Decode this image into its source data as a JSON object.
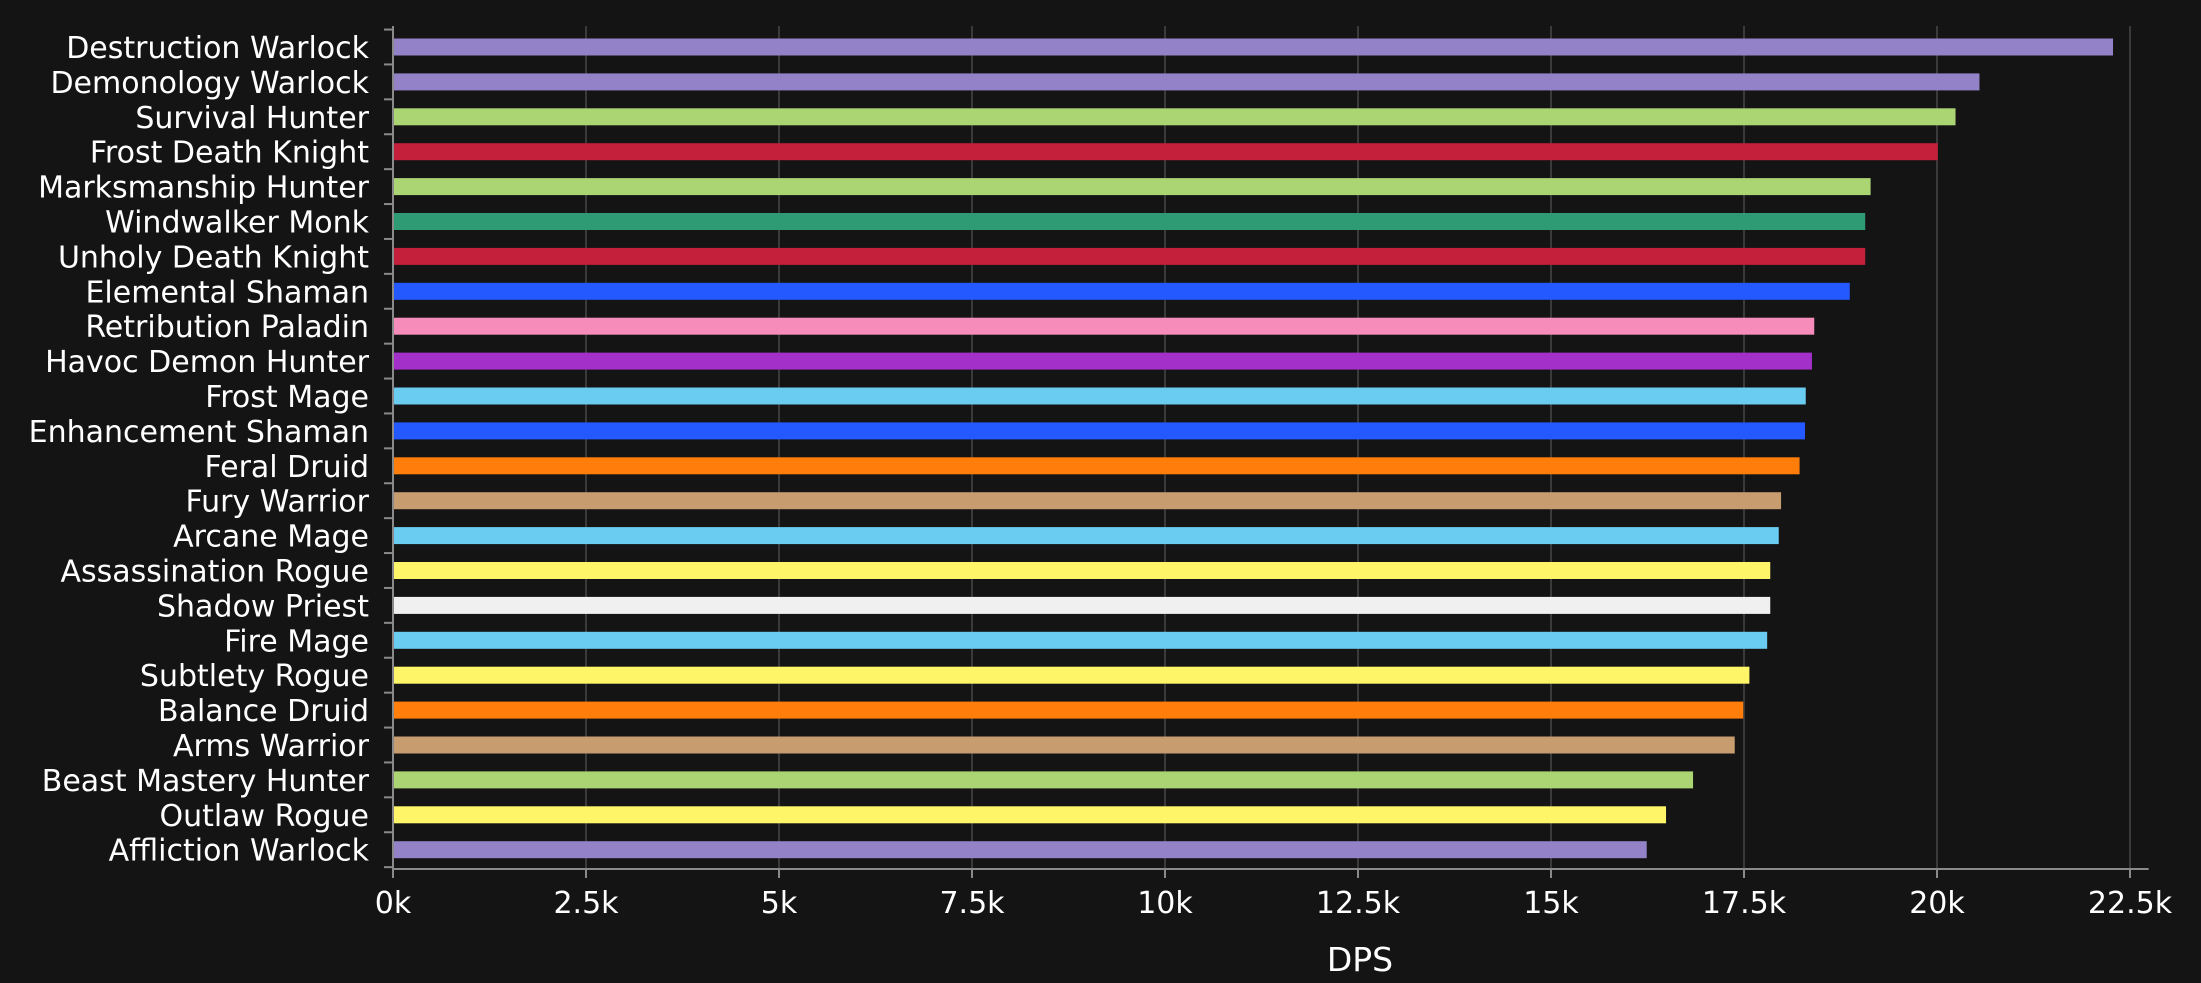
{
  "chart_data": {
    "type": "bar",
    "orientation": "horizontal",
    "xlabel": "DPS",
    "xlim": [
      0,
      23000
    ],
    "xticks": [
      {
        "value": 0,
        "label": "0k"
      },
      {
        "value": 2500,
        "label": "2.5k"
      },
      {
        "value": 5000,
        "label": "5k"
      },
      {
        "value": 7500,
        "label": "7.5k"
      },
      {
        "value": 10000,
        "label": "10k"
      },
      {
        "value": 12500,
        "label": "12.5k"
      },
      {
        "value": 15000,
        "label": "15k"
      },
      {
        "value": 17500,
        "label": "17.5k"
      },
      {
        "value": 20000,
        "label": "20k"
      },
      {
        "value": 22500,
        "label": "22.5k"
      }
    ],
    "grid": true,
    "bars": [
      {
        "category": "Destruction Warlock",
        "value": 22280,
        "color": "#9482c9"
      },
      {
        "category": "Demonology Warlock",
        "value": 20550,
        "color": "#9482c9"
      },
      {
        "category": "Survival Hunter",
        "value": 20240,
        "color": "#abd473"
      },
      {
        "category": "Frost Death Knight",
        "value": 20010,
        "color": "#c41f3b"
      },
      {
        "category": "Marksmanship Hunter",
        "value": 19140,
        "color": "#abd473"
      },
      {
        "category": "Windwalker Monk",
        "value": 19070,
        "color": "#2f9b74"
      },
      {
        "category": "Unholy Death Knight",
        "value": 19070,
        "color": "#c41f3b"
      },
      {
        "category": "Elemental Shaman",
        "value": 18870,
        "color": "#2459ff"
      },
      {
        "category": "Retribution Paladin",
        "value": 18410,
        "color": "#f58cba"
      },
      {
        "category": "Havoc Demon Hunter",
        "value": 18380,
        "color": "#a330c9"
      },
      {
        "category": "Frost Mage",
        "value": 18300,
        "color": "#69ccf0"
      },
      {
        "category": "Enhancement Shaman",
        "value": 18290,
        "color": "#2459ff"
      },
      {
        "category": "Feral Druid",
        "value": 18220,
        "color": "#ff7d0a"
      },
      {
        "category": "Fury Warrior",
        "value": 17980,
        "color": "#c79c6e"
      },
      {
        "category": "Arcane Mage",
        "value": 17950,
        "color": "#69ccf0"
      },
      {
        "category": "Assassination Rogue",
        "value": 17840,
        "color": "#fff569"
      },
      {
        "category": "Shadow Priest",
        "value": 17840,
        "color": "#f0f0f0"
      },
      {
        "category": "Fire Mage",
        "value": 17800,
        "color": "#69ccf0"
      },
      {
        "category": "Subtlety Rogue",
        "value": 17570,
        "color": "#fff569"
      },
      {
        "category": "Balance Druid",
        "value": 17490,
        "color": "#ff7d0a"
      },
      {
        "category": "Arms Warrior",
        "value": 17380,
        "color": "#c79c6e"
      },
      {
        "category": "Beast Mastery Hunter",
        "value": 16840,
        "color": "#abd473"
      },
      {
        "category": "Outlaw Rogue",
        "value": 16490,
        "color": "#fff569"
      },
      {
        "category": "Affliction Warlock",
        "value": 16240,
        "color": "#9482c9"
      }
    ]
  },
  "colors": {
    "background": "#141414",
    "grid": "#3a3a3a",
    "axis": "#8a8a8a",
    "text": "#ffffff"
  }
}
